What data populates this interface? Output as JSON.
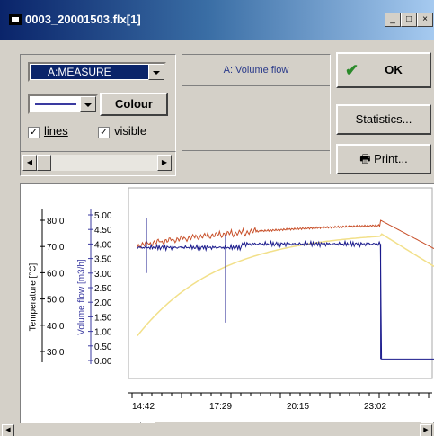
{
  "window": {
    "title": "0003_20001503.flx[1]",
    "controls": [
      "_",
      "□",
      "×"
    ]
  },
  "toolbar": {
    "series_select_value": "A:MEASURE",
    "colour_label": "Colour",
    "lines_label": "lines",
    "visible_label": "visible",
    "lines_checked": true,
    "visible_checked": true,
    "series_title": "A: Volume flow",
    "ok_label": "OK",
    "statistics_label": "Statistics...",
    "print_label": "Print..."
  },
  "left_axis": {
    "label": "Temperature [°C]",
    "ticks": [
      "80.0",
      "70.0",
      "60.0",
      "50.0",
      "40.0",
      "30.0"
    ]
  },
  "right_axis": {
    "label": "Volume flow  [m3/h]",
    "ticks": [
      "5.00",
      "4.50",
      "4.00",
      "3.50",
      "3.00",
      "2.50",
      "2.00",
      "1.50",
      "1.00",
      "0.50",
      "0.00"
    ]
  },
  "time_axis": {
    "ticks": [
      "14:42",
      "17:29",
      "20:15",
      "23:02"
    ]
  },
  "colors": {
    "temp_series": "#c8502a",
    "flow_series": "#1a1a8c",
    "yellow_series": "#f2e08a",
    "flow_axis": "#3a3aa0"
  },
  "chart_data": {
    "type": "line",
    "x": [
      "14:42",
      "17:29",
      "20:15",
      "23:02"
    ],
    "series": [
      {
        "name": "",
        "values": [
          71,
          76,
          79,
          80
        ]
      },
      {
        "name": "",
        "values": [
          3.9,
          3.9,
          4.0,
          4.0
        ]
      },
      {
        "name": "",
        "values": [
          40,
          62,
          72,
          77
        ]
      }
    ]
  }
}
